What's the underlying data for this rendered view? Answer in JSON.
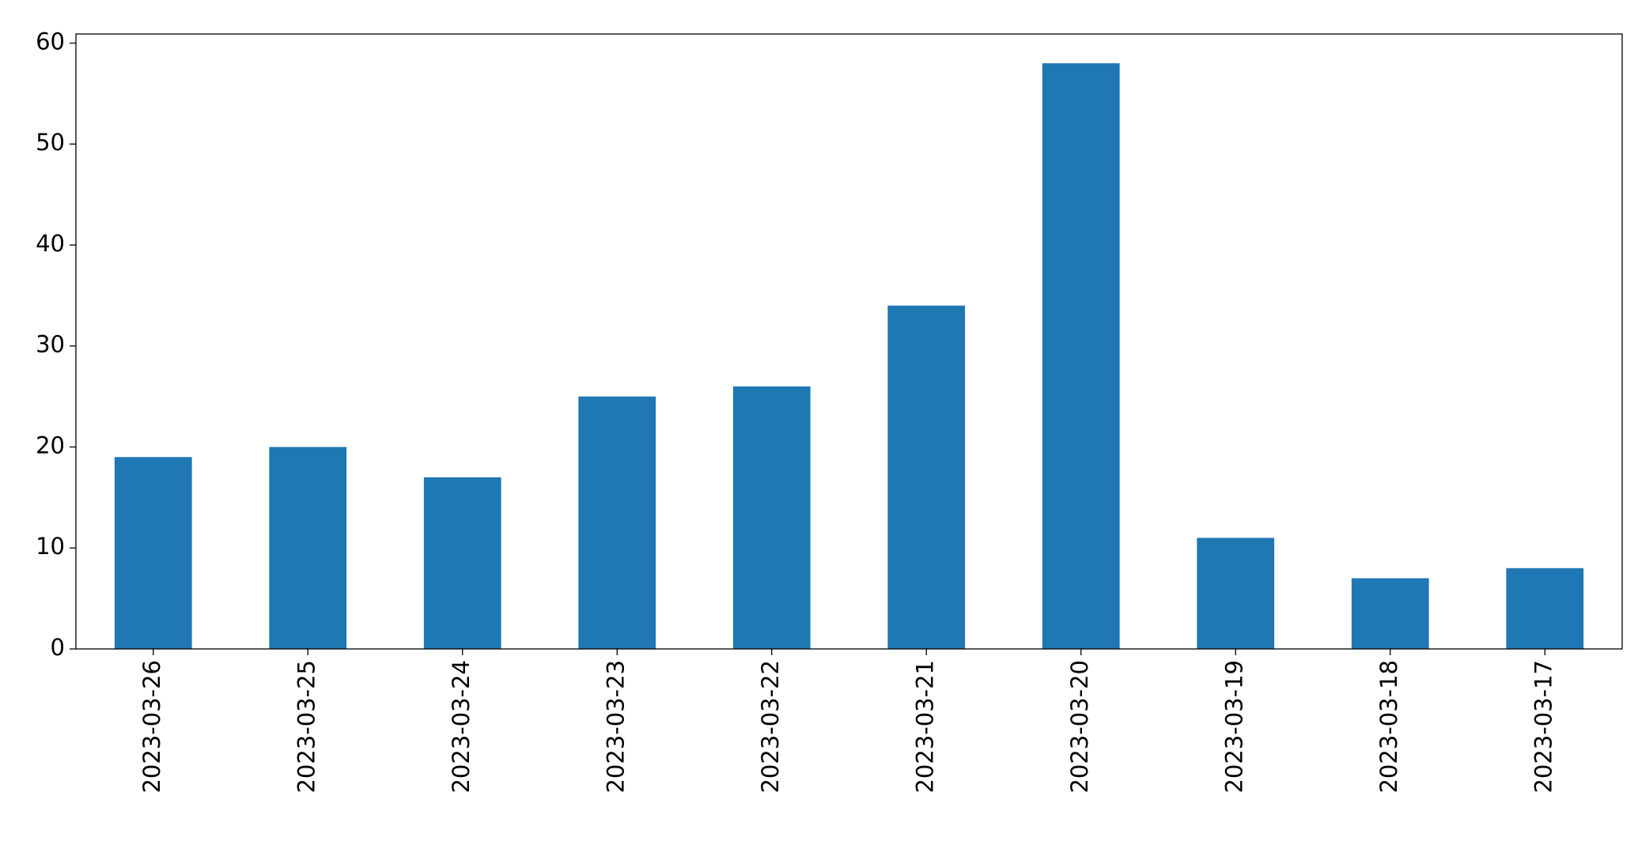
{
  "chart_data": {
    "type": "bar",
    "categories": [
      "2023-03-26",
      "2023-03-25",
      "2023-03-24",
      "2023-03-23",
      "2023-03-22",
      "2023-03-21",
      "2023-03-20",
      "2023-03-19",
      "2023-03-18",
      "2023-03-17"
    ],
    "values": [
      19,
      20,
      17,
      25,
      26,
      34,
      58,
      11,
      7,
      8
    ],
    "color": "#1f77b4",
    "ylim": [
      0,
      60.9
    ],
    "yticks": [
      0,
      10,
      20,
      30,
      40,
      50,
      60
    ],
    "grid": false
  }
}
